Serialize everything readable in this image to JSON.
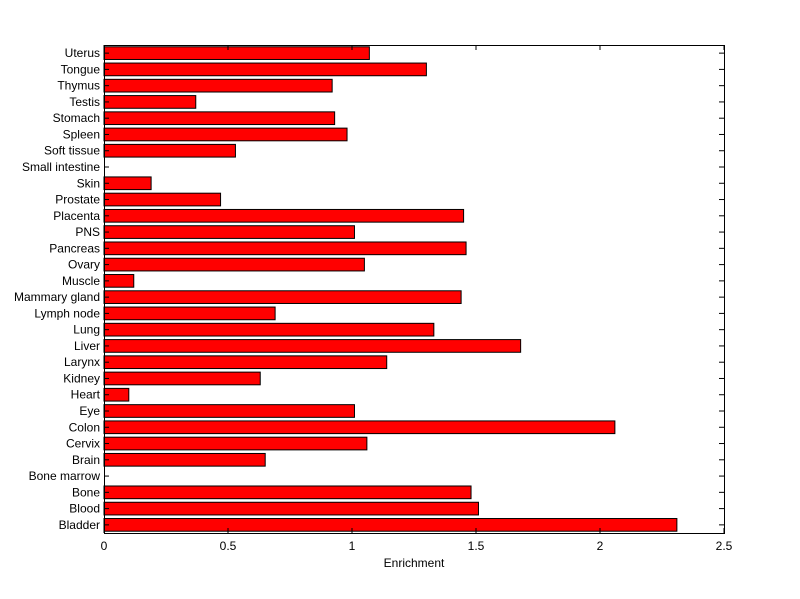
{
  "chart_data": {
    "type": "bar",
    "orientation": "horizontal",
    "xlabel": "Enrichment",
    "ylabel": "",
    "xlim": [
      0,
      2.5
    ],
    "xticks": [
      0,
      0.5,
      1,
      1.5,
      2,
      2.5
    ],
    "xtick_labels": [
      "0",
      "0.5",
      "1",
      "1.5",
      "2",
      "2.5"
    ],
    "grid": false,
    "bar_color": "#ff0000",
    "bar_edge_color": "#000000",
    "categories": [
      "Uterus",
      "Tongue",
      "Thymus",
      "Testis",
      "Stomach",
      "Spleen",
      "Soft tissue",
      "Small intestine",
      "Skin",
      "Prostate",
      "Placenta",
      "PNS",
      "Pancreas",
      "Ovary",
      "Muscle",
      "Mammary gland",
      "Lymph node",
      "Lung",
      "Liver",
      "Larynx",
      "Kidney",
      "Heart",
      "Eye",
      "Colon",
      "Cervix",
      "Brain",
      "Bone marrow",
      "Bone",
      "Blood",
      "Bladder"
    ],
    "values": [
      1.07,
      1.3,
      0.92,
      0.37,
      0.93,
      0.98,
      0.53,
      0.0,
      0.19,
      0.47,
      1.45,
      1.01,
      1.46,
      1.05,
      0.12,
      1.44,
      0.69,
      1.33,
      1.68,
      1.14,
      0.63,
      0.1,
      1.01,
      2.06,
      1.06,
      0.65,
      0.0,
      1.48,
      1.51,
      2.31
    ]
  }
}
